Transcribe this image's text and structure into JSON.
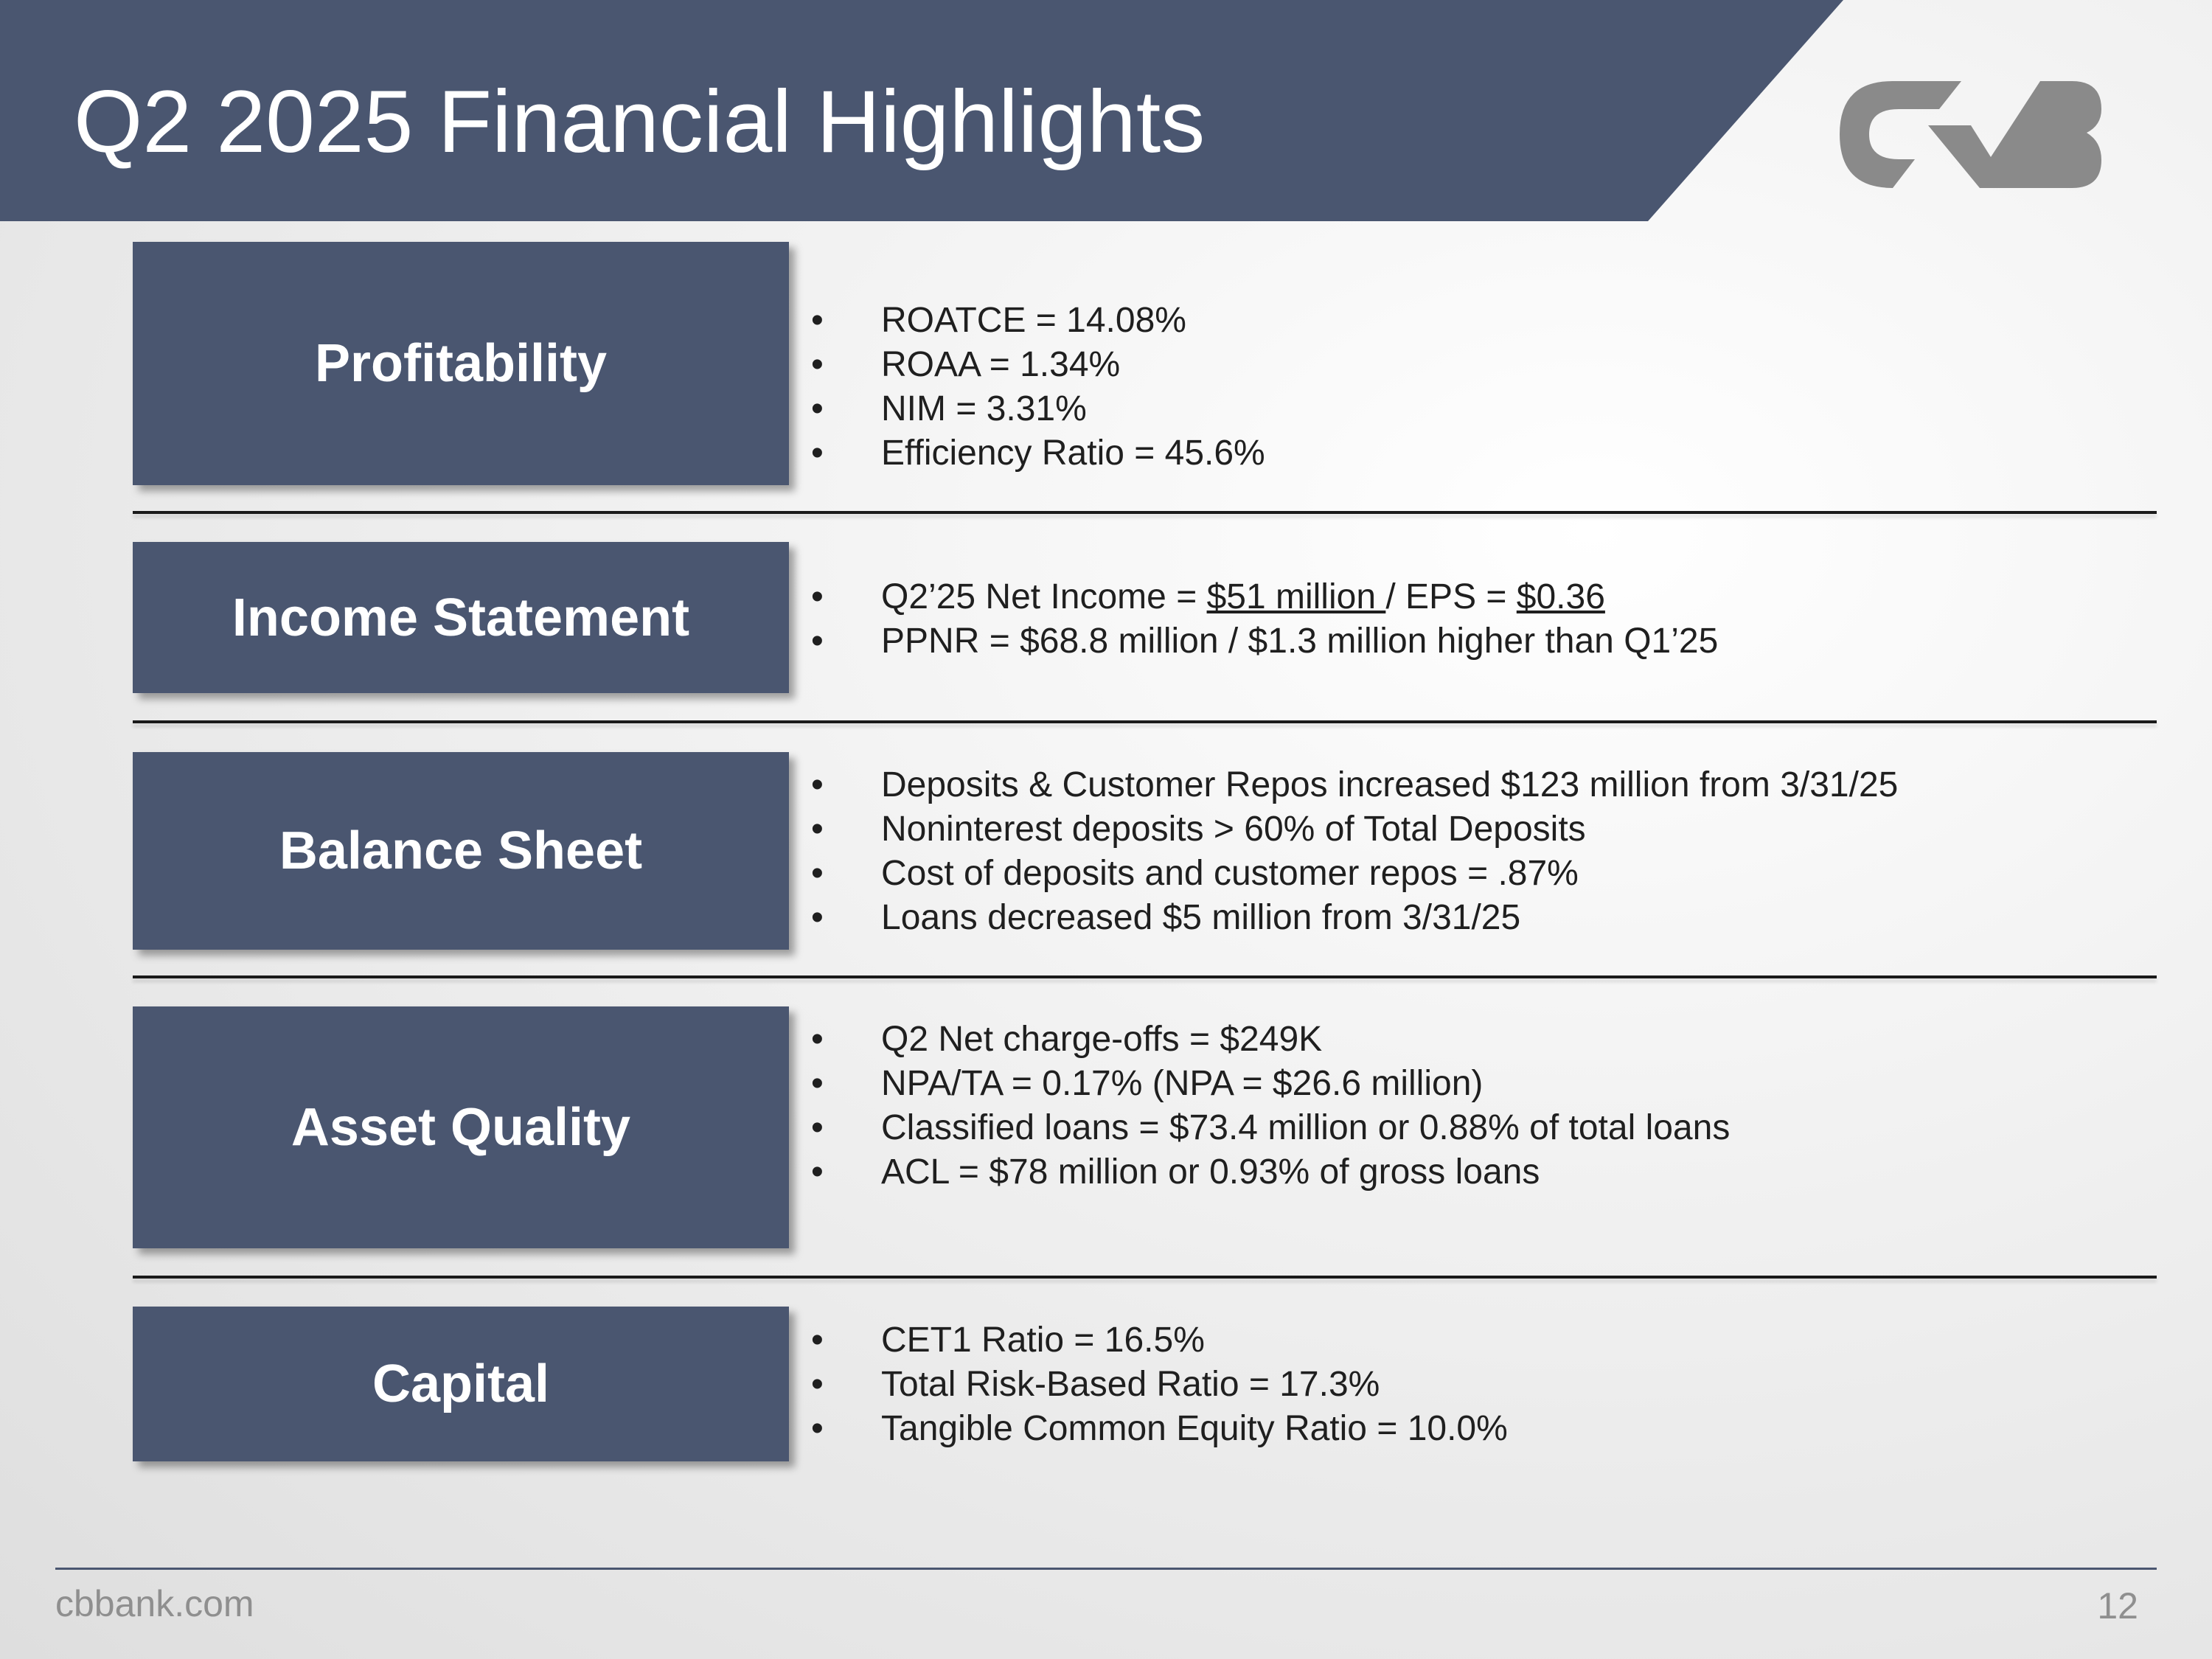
{
  "title": "Q2 2025 Financial Highlights",
  "logo": {
    "icon": "cvb-logo-icon",
    "color": "#8a8a8a"
  },
  "colors": {
    "accent": "#4a5670"
  },
  "sections": [
    {
      "label": "Profitability",
      "bullets": [
        [
          "ROATCE = 14.08%"
        ],
        [
          "ROAA = 1.34%"
        ],
        [
          "NIM = 3.31%"
        ],
        [
          "Efficiency Ratio = 45.6%"
        ]
      ]
    },
    {
      "label": "Income Statement",
      "bullets": [
        [
          "Q2’25 Net Income = ",
          "$51 million ",
          "/ EPS = ",
          "$0.36"
        ],
        [
          "PPNR = $68.8 million / $1.3 million higher than Q1’25"
        ]
      ]
    },
    {
      "label": "Balance Sheet",
      "bullets": [
        [
          "Deposits & Customer Repos increased $123 million from 3/31/25"
        ],
        [
          "Noninterest deposits > 60% of Total Deposits"
        ],
        [
          "Cost of deposits and customer repos = .87%"
        ],
        [
          "Loans decreased $5 million from 3/31/25"
        ]
      ]
    },
    {
      "label": "Asset Quality",
      "bullets": [
        [
          "Q2 Net charge-offs = $249K"
        ],
        [
          "NPA/TA = 0.17% (NPA = $26.6 million)"
        ],
        [
          "Classified loans = $73.4 million or 0.88% of total loans"
        ],
        [
          "ACL = $78 million or 0.93% of gross loans"
        ]
      ]
    },
    {
      "label": "Capital",
      "bullets": [
        [
          "CET1 Ratio = 16.5%"
        ],
        [
          "Total Risk-Based Ratio = 17.3%"
        ],
        [
          "Tangible Common Equity Ratio = 10.0%"
        ]
      ]
    }
  ],
  "bullet_glyph": "•",
  "footer": {
    "url": "cbbank.com",
    "page": "12"
  }
}
